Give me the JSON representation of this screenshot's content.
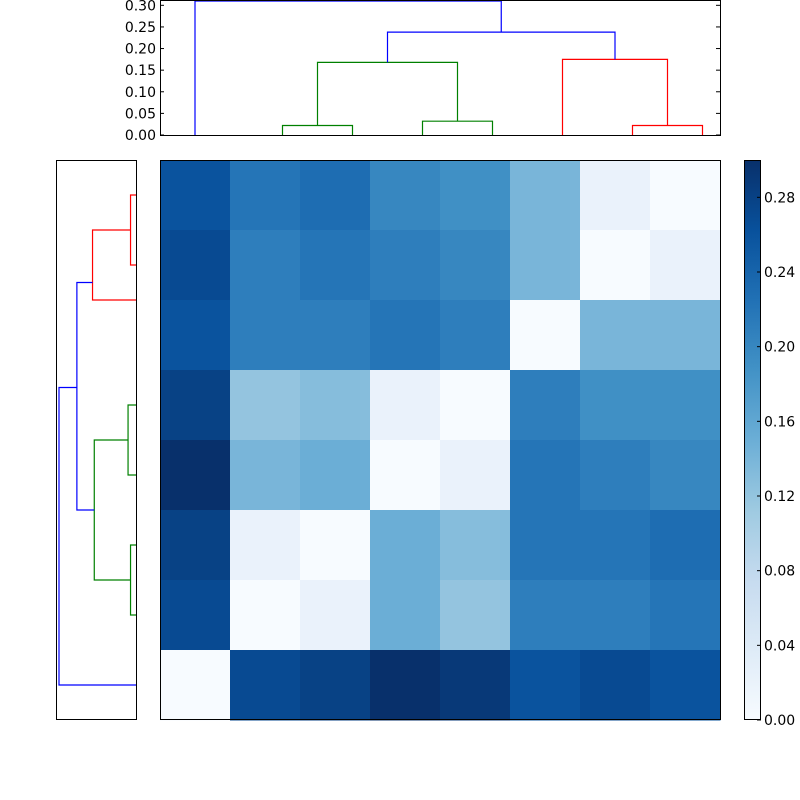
{
  "chart_data": [
    {
      "type": "dendrogram",
      "orientation": "top",
      "ylim": [
        0,
        0.31
      ],
      "yticks": [
        "0.00",
        "0.05",
        "0.10",
        "0.15",
        "0.20",
        "0.25",
        "0.30"
      ],
      "leaf_count": 8,
      "links": [
        {
          "a": 3.5,
          "b": 5.5,
          "ha": 0,
          "hb": 0,
          "h": 0.022,
          "color": "#008000"
        },
        {
          "a": 7.5,
          "b": 9.5,
          "ha": 0,
          "hb": 0,
          "h": 0.032,
          "color": "#008000"
        },
        {
          "a": 13.5,
          "b": 15.5,
          "ha": 0,
          "hb": 0,
          "h": 0.022,
          "color": "#ff0000"
        },
        {
          "a": 4.5,
          "b": 8.5,
          "ha": 0.022,
          "hb": 0.032,
          "h": 0.168,
          "color": "#008000"
        },
        {
          "a": 11.5,
          "b": 14.5,
          "ha": 0,
          "hb": 0.022,
          "h": 0.175,
          "color": "#ff0000"
        },
        {
          "a": 6.5,
          "b": 13.0,
          "ha": 0.168,
          "hb": 0.175,
          "h": 0.238,
          "color": "#0000ff"
        },
        {
          "a": 1.0,
          "b": 9.75,
          "ha": 0,
          "hb": 0.238,
          "h": 0.31,
          "color": "#0000ff"
        }
      ]
    },
    {
      "type": "dendrogram",
      "orientation": "left",
      "xlim": [
        0,
        0.31
      ],
      "leaf_count": 8,
      "links": [
        {
          "a": 0.5,
          "b": 1.5,
          "ha": 0,
          "hb": 0,
          "h": 0.022,
          "color": "#ff0000"
        },
        {
          "a": 3.5,
          "b": 4.5,
          "ha": 0,
          "hb": 0,
          "h": 0.032,
          "color": "#008000"
        },
        {
          "a": 5.5,
          "b": 6.5,
          "ha": 0,
          "hb": 0,
          "h": 0.022,
          "color": "#008000"
        },
        {
          "a": 1.0,
          "b": 2.0,
          "ha": 0.022,
          "hb": 0,
          "h": 0.175,
          "color": "#ff0000"
        },
        {
          "a": 4.0,
          "b": 6.0,
          "ha": 0.032,
          "hb": 0.022,
          "h": 0.168,
          "color": "#008000"
        },
        {
          "a": 1.75,
          "b": 5.0,
          "ha": 0.175,
          "hb": 0.168,
          "h": 0.238,
          "color": "#0000ff"
        },
        {
          "a": 3.25,
          "b": 7.5,
          "ha": 0.238,
          "hb": 0,
          "h": 0.31,
          "color": "#0000ff"
        }
      ]
    },
    {
      "type": "heatmap",
      "colormap": "Blues",
      "vmin": 0,
      "vmax": 0.3,
      "values": [
        [
          0.26,
          0.22,
          0.23,
          0.2,
          0.19,
          0.14,
          0.02,
          0.0
        ],
        [
          0.27,
          0.21,
          0.22,
          0.21,
          0.2,
          0.14,
          0.0,
          0.02
        ],
        [
          0.26,
          0.21,
          0.21,
          0.22,
          0.21,
          0.0,
          0.14,
          0.14
        ],
        [
          0.28,
          0.12,
          0.13,
          0.02,
          0.0,
          0.21,
          0.19,
          0.19
        ],
        [
          0.3,
          0.14,
          0.15,
          0.0,
          0.02,
          0.22,
          0.21,
          0.2
        ],
        [
          0.28,
          0.02,
          0.0,
          0.15,
          0.13,
          0.22,
          0.22,
          0.23
        ],
        [
          0.27,
          0.0,
          0.02,
          0.15,
          0.12,
          0.21,
          0.21,
          0.22
        ],
        [
          0.0,
          0.27,
          0.28,
          0.3,
          0.29,
          0.26,
          0.27,
          0.26
        ]
      ],
      "colorbar": {
        "ticks": [
          "0.00",
          "0.04",
          "0.08",
          "0.12",
          "0.16",
          "0.20",
          "0.24",
          "0.28"
        ]
      }
    }
  ]
}
